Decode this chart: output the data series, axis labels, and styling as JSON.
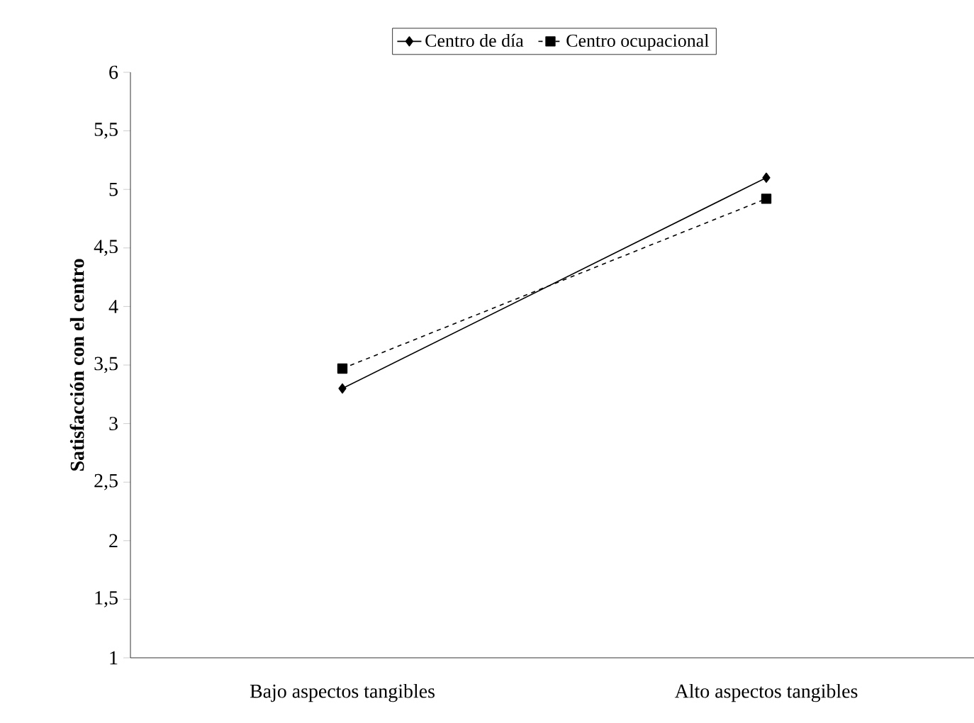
{
  "chart_data": {
    "type": "line",
    "ylabel": "Satisfacción con el centro",
    "categories": [
      "Bajo aspectos tangibles",
      "Alto aspectos tangibles"
    ],
    "series": [
      {
        "name": "Centro de día",
        "color": "#000000",
        "values": [
          3.3,
          5.1
        ],
        "marker": "diamond",
        "line_style": "solid"
      },
      {
        "name": "Centro ocupacional",
        "color": "#000000",
        "values": [
          3.47,
          4.92
        ],
        "marker": "square",
        "line_style": "dashed"
      }
    ],
    "ylim": [
      1,
      6
    ],
    "yticks": [
      1,
      {
        "value": 1.5,
        "label": "1,5"
      },
      2,
      {
        "value": 2.5,
        "label": "2,5"
      },
      3,
      {
        "value": 3.5,
        "label": "3,5"
      },
      4,
      {
        "value": 4.5,
        "label": "4,5"
      },
      5,
      {
        "value": 5.5,
        "label": "5,5"
      },
      6
    ],
    "grid": false,
    "legend": "top"
  }
}
